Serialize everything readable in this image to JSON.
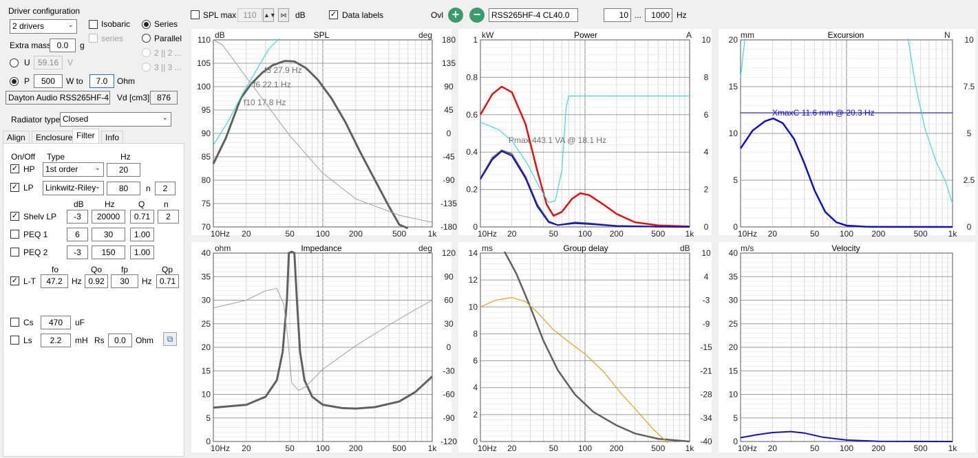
{
  "left": {
    "driver_config": "Driver configuration",
    "drivers": "2 drivers",
    "isobaric": "Isobaric",
    "series_sub": "series",
    "series": "Series",
    "parallel": "Parallel",
    "opt22": "2 || 2 ...",
    "opt33": "3 || 3 ...",
    "extra_mass_label": "Extra mass",
    "extra_mass": "0.0",
    "extra_mass_unit": "g",
    "u_label": "U",
    "u_value": "59.16",
    "u_unit": "V",
    "p_label": "P",
    "p_value": "500",
    "w_to": "W to",
    "ohm_value": "7.0",
    "ohm_unit": "Ohm",
    "driver_name": "Dayton Audio RSS265HF-4",
    "vd_label": "Vd [cm3]",
    "vd_value": "876",
    "radiator_label": "Radiator type",
    "radiator": "Closed",
    "tabs": [
      "Align",
      "Enclosure",
      "Filter",
      "Info"
    ],
    "filter": {
      "h_onoff": "On/Off",
      "h_type": "Type",
      "h_hz": "Hz",
      "hp": "HP",
      "hp_type": "1st order",
      "hp_hz": "20",
      "lp": "LP",
      "lp_type": "Linkwitz-Riley",
      "lp_hz": "80",
      "n_label": "n",
      "lp_n": "2",
      "h_db": "dB",
      "h_hz2": "Hz",
      "h_q": "Q",
      "h_n": "n",
      "shelv": "Shelv LP",
      "shelv_db": "-3",
      "shelv_hz": "20000",
      "shelv_q": "0.71",
      "shelv_n": "2",
      "peq1": "PEQ 1",
      "peq1_db": "6",
      "peq1_hz": "30",
      "peq1_q": "1.00",
      "peq2": "PEQ 2",
      "peq2_db": "-3",
      "peq2_hz": "150",
      "peq2_q": "1.00",
      "h_fo": "fo",
      "h_qo": "Qo",
      "h_fp": "fp",
      "h_qp": "Qp",
      "lt": "L-T",
      "lt_fo": "47.2",
      "hz_unit": "Hz",
      "lt_qo": "0.92",
      "lt_fp": "30",
      "lt_qp": "0.71",
      "cs": "Cs",
      "cs_value": "470",
      "cs_unit": "uF",
      "ls": "Ls",
      "ls_value": "2.2",
      "ls_unit": "mH",
      "rs_label": "Rs",
      "rs_value": "0.0",
      "rs_unit": "Ohm"
    }
  },
  "top": {
    "spl_max": "SPL max",
    "spl_max_value": "110",
    "db": "dB",
    "data_labels": "Data labels",
    "ovl": "Ovl",
    "overlay_name": "RSS265HF-4 CL40.0",
    "f_from": "10",
    "dots": "...",
    "f_to": "1000",
    "hz": "Hz"
  },
  "charts": {
    "spl": {
      "title": "SPL",
      "unit_l": "dB",
      "unit_r": "deg",
      "yl": [
        "110",
        "105",
        "100",
        "95",
        "90",
        "85",
        "80",
        "75",
        "70"
      ],
      "yr": [
        "180",
        "135",
        "90",
        "45",
        "0",
        "-45",
        "-90",
        "-135",
        "-180"
      ],
      "labels": [
        "f3 27.9 Hz",
        "f6 22.1 Hz",
        "f10 17.8 Hz"
      ]
    },
    "power": {
      "title": "Power",
      "unit_l": "kW",
      "unit_r": "A",
      "yl": [
        "1",
        "0.8",
        "0.6",
        "0.4",
        "0.2",
        "0"
      ],
      "yr": [
        "10",
        "8",
        "6",
        "4",
        "2",
        "0"
      ],
      "label": "Pmax 443.1 VA  @ 18.1 Hz"
    },
    "excursion": {
      "title": "Excursion",
      "unit_l": "mm",
      "unit_r": "N",
      "yl": [
        "20",
        "15",
        "10",
        "5",
        "0"
      ],
      "yr": [
        "10",
        "7.5",
        "5",
        "2.5",
        "0"
      ],
      "label": "XmaxC 11.6 mm  @ 20.3 Hz"
    },
    "impedance": {
      "title": "Impedance",
      "unit_l": "ohm",
      "unit_r": "deg",
      "yl": [
        "40",
        "35",
        "30",
        "25",
        "20",
        "15",
        "10",
        "5",
        "0"
      ],
      "yr": [
        "120",
        "90",
        "60",
        "30",
        "0",
        "-30",
        "-60",
        "-90",
        "-120"
      ]
    },
    "group_delay": {
      "title": "Group delay",
      "unit_l": "ms",
      "unit_r": "dB",
      "yl": [
        "14",
        "12",
        "10",
        "8",
        "6",
        "4",
        "2",
        "0"
      ],
      "yr": [
        "10",
        "4",
        "-3",
        "-9",
        "-15",
        "-21",
        "-28",
        "-34",
        "-40"
      ]
    },
    "velocity": {
      "title": "Velocity",
      "unit_l": "m/s",
      "yl": [
        "40",
        "35",
        "30",
        "25",
        "20",
        "15",
        "10",
        "5",
        "0"
      ]
    },
    "x_ticks": [
      "10Hz",
      "20",
      "50",
      "100",
      "200",
      "500",
      "1k"
    ]
  },
  "colors": {
    "red": "#e01010",
    "blue": "#1010c0",
    "cyan": "#40d8d8",
    "gray": "#606060",
    "orange": "#e0a020",
    "accent": "#3a9b6c"
  }
}
